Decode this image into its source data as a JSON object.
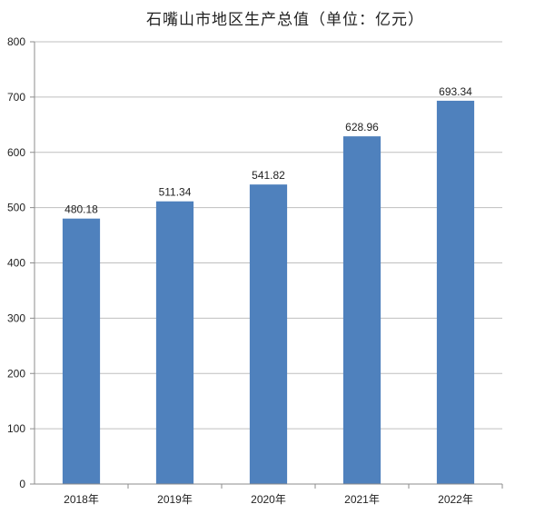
{
  "chart_data": {
    "type": "bar",
    "title": "石嘴山市地区生产总值（单位：亿元）",
    "xlabel": "",
    "ylabel": "",
    "categories": [
      "2018年",
      "2019年",
      "2020年",
      "2021年",
      "2022年"
    ],
    "values": [
      480.18,
      511.34,
      541.82,
      628.96,
      693.34
    ],
    "value_labels": [
      "480.18",
      "511.34",
      "541.82",
      "628.96",
      "693.34"
    ],
    "ylim": [
      0,
      800
    ],
    "yticks": [
      "0",
      "100",
      "200",
      "300",
      "400",
      "500",
      "600",
      "700",
      "800"
    ],
    "grid": true,
    "legend": "none",
    "bar_color": "#4f81bd"
  }
}
